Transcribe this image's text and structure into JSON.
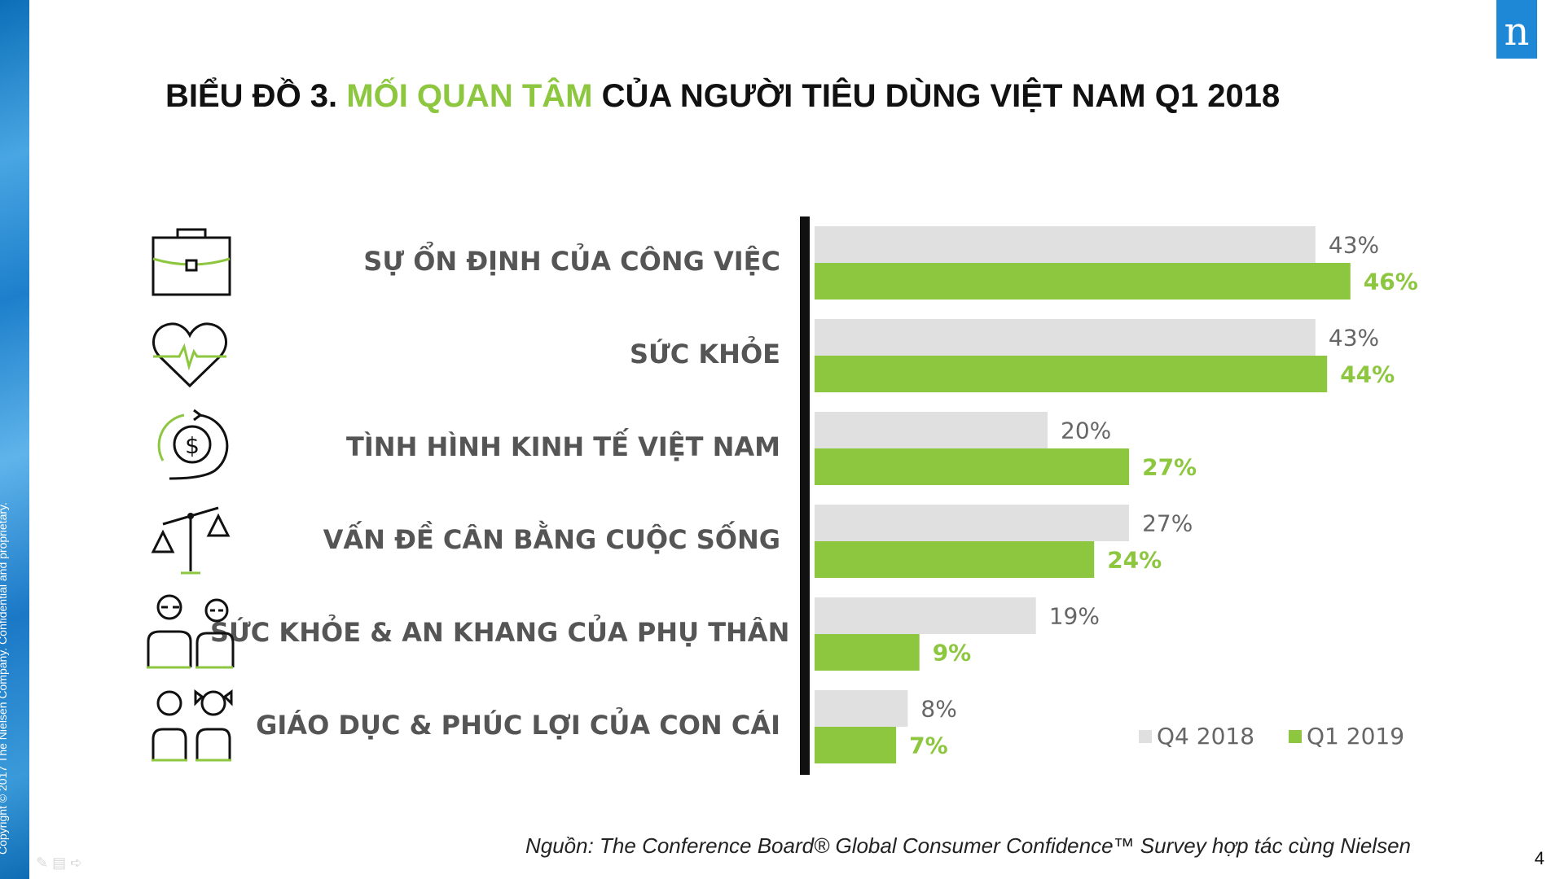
{
  "sidebar": {
    "copyright": "Copyright © 2017 The Nielsen Company. Confidential and proprietary."
  },
  "logo": {
    "letter": "n",
    "color": "#1e88d6"
  },
  "title": {
    "part1": "BIỂU ĐỒ 3. ",
    "highlight": "MỐI QUAN TÂM",
    "part2": " CỦA NGƯỜI TIÊU DÙNG VIỆT NAM Q1 2018"
  },
  "chart_data": {
    "type": "bar",
    "orientation": "horizontal",
    "categories": [
      "SỰ ỔN ĐỊNH CỦA CÔNG VIỆC",
      "SỨC KHỎE",
      "TÌNH HÌNH KINH TẾ VIỆT NAM",
      "VẤN ĐỀ CÂN BẰNG CUỘC SỐNG",
      "SỨC KHỎE & AN KHANG CỦA PHỤ THÂN",
      "GIÁO DỤC & PHÚC LỢI CỦA CON CÁI"
    ],
    "category_icons": [
      "briefcase-icon",
      "heart-pulse-icon",
      "dollar-cycle-icon",
      "balance-scale-icon",
      "elderly-parents-icon",
      "children-icon"
    ],
    "series": [
      {
        "name": "Q4 2018",
        "values": [
          43,
          43,
          20,
          27,
          19,
          8
        ],
        "labels": [
          "43%",
          "43%",
          "20%",
          "27%",
          "19%",
          "8%"
        ],
        "color": "#e0e0e0",
        "label_color": "#666666"
      },
      {
        "name": "Q1 2019",
        "values": [
          46,
          44,
          27,
          24,
          9,
          7
        ],
        "labels": [
          "46%",
          "44%",
          "27%",
          "24%",
          "9%",
          "7%"
        ],
        "color": "#8dc63f",
        "label_color": "#8dc63f"
      }
    ],
    "xlim": [
      0,
      50
    ],
    "legend_position": "bottom-right",
    "grid": false
  },
  "source": "Nguồn: The Conference Board® Global Consumer Confidence™ Survey hợp tác cùng Nielsen",
  "page_number": "4"
}
